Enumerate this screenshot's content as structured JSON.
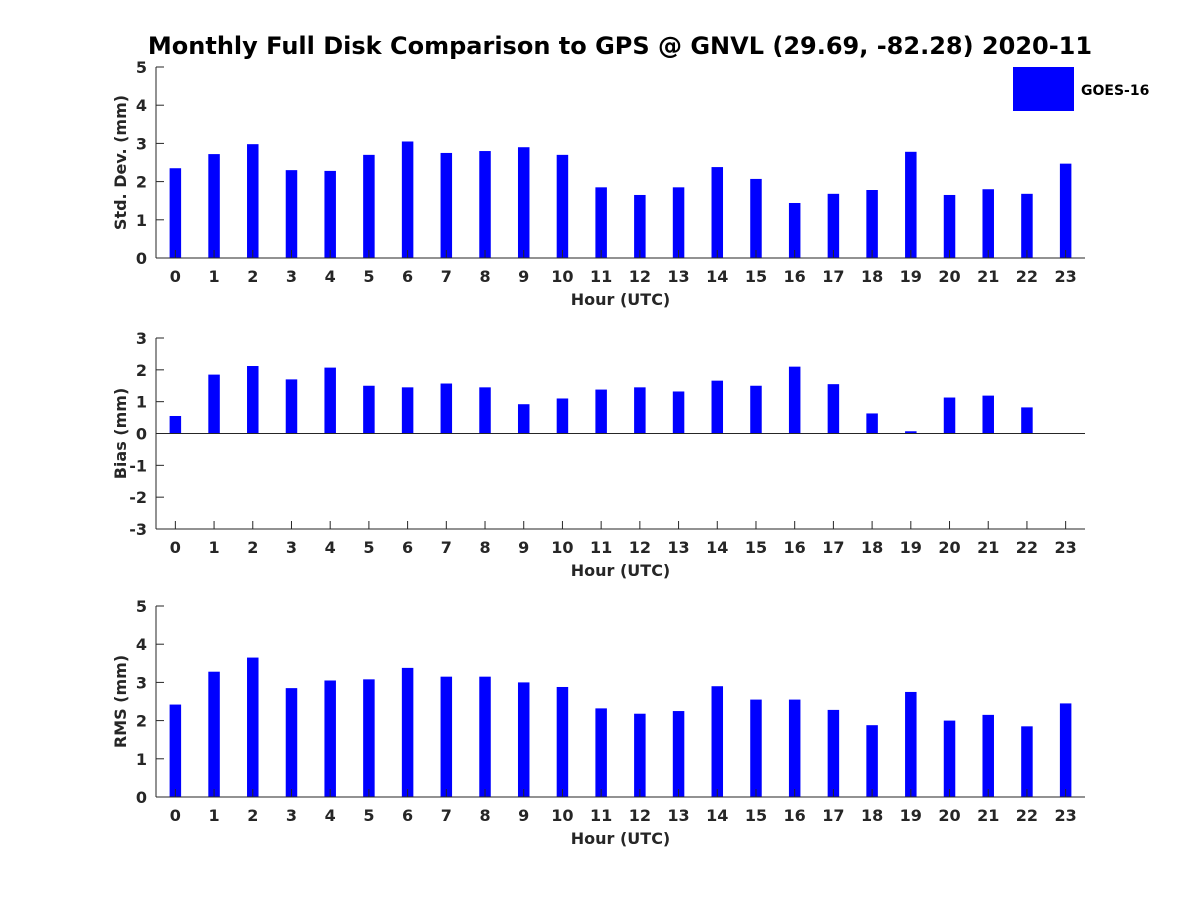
{
  "title": "Monthly Full Disk Comparison to GPS @ GNVL (29.69, -82.28) 2020-11",
  "legend": {
    "label": "GOES-16",
    "color": "#0000FF"
  },
  "chart_data": [
    {
      "type": "bar",
      "x": [
        0,
        1,
        2,
        3,
        4,
        5,
        6,
        7,
        8,
        9,
        10,
        11,
        12,
        13,
        14,
        15,
        16,
        17,
        18,
        19,
        20,
        21,
        22,
        23
      ],
      "values": [
        2.35,
        2.72,
        2.98,
        2.3,
        2.28,
        2.7,
        3.05,
        2.75,
        2.8,
        2.9,
        2.7,
        1.85,
        1.65,
        1.85,
        2.38,
        2.07,
        1.44,
        1.68,
        1.78,
        2.78,
        1.65,
        1.8,
        1.68,
        2.47
      ],
      "xlabel": "Hour (UTC)",
      "ylabel": "Std. Dev. (mm)",
      "ylim": [
        0,
        5
      ],
      "yticks": [
        0,
        1,
        2,
        3,
        4,
        5
      ],
      "series_name": "GOES-16",
      "color": "#0000FF"
    },
    {
      "type": "bar",
      "x": [
        0,
        1,
        2,
        3,
        4,
        5,
        6,
        7,
        8,
        9,
        10,
        11,
        12,
        13,
        14,
        15,
        16,
        17,
        18,
        19,
        20,
        21,
        22,
        23
      ],
      "values": [
        0.55,
        1.85,
        2.12,
        1.7,
        2.07,
        1.5,
        1.45,
        1.57,
        1.45,
        0.92,
        1.1,
        1.38,
        1.45,
        1.32,
        1.66,
        1.5,
        2.1,
        1.55,
        0.63,
        0.07,
        1.13,
        1.19,
        0.82,
        null
      ],
      "xlabel": "Hour (UTC)",
      "ylabel": "Bias (mm)",
      "ylim": [
        -3,
        3
      ],
      "yticks": [
        -3,
        -2,
        -1,
        0,
        1,
        2,
        3
      ],
      "zero_line": true,
      "color": "#0000FF"
    },
    {
      "type": "bar",
      "x": [
        0,
        1,
        2,
        3,
        4,
        5,
        6,
        7,
        8,
        9,
        10,
        11,
        12,
        13,
        14,
        15,
        16,
        17,
        18,
        19,
        20,
        21,
        22,
        23
      ],
      "values": [
        2.42,
        3.28,
        3.65,
        2.85,
        3.05,
        3.08,
        3.38,
        3.15,
        3.15,
        3.0,
        2.88,
        2.32,
        2.18,
        2.25,
        2.9,
        2.55,
        2.55,
        2.28,
        1.88,
        2.75,
        2.0,
        2.15,
        1.85,
        2.45
      ],
      "xlabel": "Hour (UTC)",
      "ylabel": "RMS (mm)",
      "ylim": [
        0,
        5
      ],
      "yticks": [
        0,
        1,
        2,
        3,
        4,
        5
      ],
      "color": "#0000FF"
    }
  ]
}
